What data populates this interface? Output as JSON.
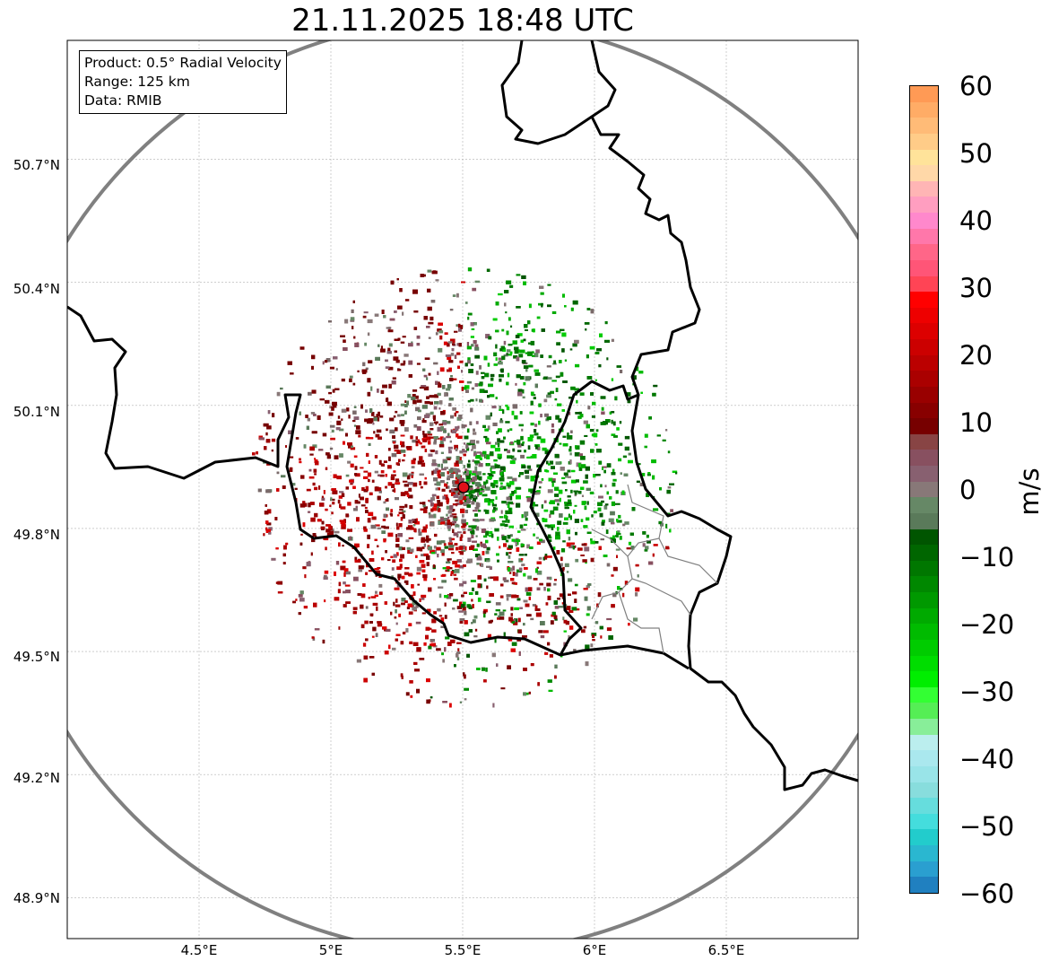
{
  "title": "21.11.2025 18:48 UTC",
  "info": {
    "product": "Product: 0.5° Radial Velocity",
    "range": "Range: 125 km",
    "source": "Data: RMIB"
  },
  "axes": {
    "lat_labels": [
      "50.7°N",
      "50.4°N",
      "50.1°N",
      "49.8°N",
      "49.5°N",
      "49.2°N",
      "48.9°N"
    ],
    "lon_labels": [
      "4.5°E",
      "5°E",
      "5.5°E",
      "6°E",
      "6.5°E"
    ],
    "lat_values": [
      50.7,
      50.4,
      50.1,
      49.8,
      49.5,
      49.2,
      48.9
    ],
    "lon_values": [
      4.5,
      5.0,
      5.5,
      6.0,
      6.5
    ],
    "lon_range": [
      4.0,
      7.0
    ],
    "lat_range": [
      48.8,
      50.99
    ]
  },
  "radar": {
    "lat": 49.915,
    "lon": 5.505,
    "range_km": 125,
    "marker_color": "#e0101a",
    "range_ring_color": "#808080"
  },
  "colorbar": {
    "unit": "m/s",
    "labels": [
      "60",
      "50",
      "40",
      "30",
      "20",
      "10",
      "0",
      "−10",
      "−20",
      "−30",
      "−40",
      "−50",
      "−60"
    ],
    "colors": [
      "#ff9a55",
      "#ffac66",
      "#ffbb77",
      "#ffcc88",
      "#ffe39a",
      "#ffd8a8",
      "#ffb5b5",
      "#ff9ec0",
      "#ff88cc",
      "#ff77aa",
      "#ff6688",
      "#ff5577",
      "#ff4455",
      "#ff0000",
      "#ee0000",
      "#dd0000",
      "#cc0000",
      "#bb0000",
      "#aa0000",
      "#990000",
      "#880000",
      "#770000",
      "#884444",
      "#885060",
      "#886070",
      "#887878",
      "#668866",
      "#5a7a5a",
      "#005500",
      "#006600",
      "#007700",
      "#008800",
      "#009900",
      "#00aa00",
      "#00bb00",
      "#00cc00",
      "#00dd00",
      "#00ee00",
      "#33ff33",
      "#55ee55",
      "#88ee99",
      "#bbeeee",
      "#aae8ee",
      "#99e4e8",
      "#88dddd",
      "#66dddd",
      "#44dddd",
      "#22cccc",
      "#2ab7d0",
      "#2a9fd0",
      "#2080c0"
    ]
  }
}
